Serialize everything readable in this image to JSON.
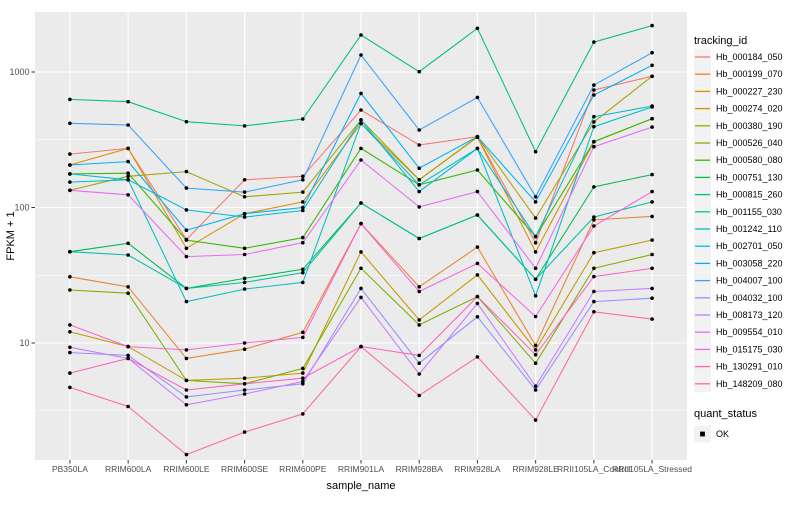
{
  "figure": {
    "background": "#FFFFFF",
    "panel_background": "#EBEBEB",
    "grid_color": "#FFFFFF",
    "tick_color": "#333333",
    "tick_label_color": "#4D4D4D",
    "text_color": "#000000",
    "legend_key_background": "#F2F2F2",
    "point_color": "#000000"
  },
  "chart_data": {
    "type": "line",
    "title": "",
    "xlabel": "sample_name",
    "ylabel": "FPKM + 1",
    "y_scale": "log10",
    "ylim": [
      1.35,
      2800
    ],
    "y_ticks": [
      10,
      100,
      1000
    ],
    "y_minor_gridlines": [
      3.162,
      31.62,
      316.2
    ],
    "grid": true,
    "legend_position": "right",
    "legend_title": "tracking_id",
    "point_legend": {
      "title": "quant_status",
      "items": [
        {
          "label": "OK",
          "marker": "black-square"
        }
      ]
    },
    "categories": [
      "PB350LA",
      "RRIM600LA",
      "RRIM600LE",
      "RRIM600SE",
      "RRIM600PE",
      "RRIM901LA",
      "RRIM928BA",
      "RRIM928LA",
      "RRIM928LE",
      "RRII105LA_Control",
      "RRII105LA_Stressed"
    ],
    "series": [
      {
        "name": "Hb_000184_050",
        "color": "#F8766D",
        "values": [
          248,
          273,
          58,
          160,
          170,
          524,
          289,
          333,
          55,
          736,
          929
        ]
      },
      {
        "name": "Hb_000199_070",
        "color": "#EA8331",
        "values": [
          30.8,
          26,
          7.7,
          9,
          12,
          76,
          26,
          51,
          9.6,
          81,
          86
        ]
      },
      {
        "name": "Hb_000227_230",
        "color": "#D89000",
        "values": [
          206,
          273,
          50,
          90,
          110,
          417,
          160,
          330,
          47,
          306,
          452
        ]
      },
      {
        "name": "Hb_000274_020",
        "color": "#C09B00",
        "values": [
          12.1,
          9.4,
          5.3,
          5.5,
          6,
          47,
          14.8,
          31.8,
          8.9,
          46.4,
          57.5
        ]
      },
      {
        "name": "Hb_000380_190",
        "color": "#A3A500",
        "values": [
          134,
          170,
          184,
          120,
          130,
          443,
          160,
          333,
          83.5,
          428,
          929
        ]
      },
      {
        "name": "Hb_000526_040",
        "color": "#7CAE00",
        "values": [
          24.6,
          23.3,
          5.3,
          5,
          6.5,
          35.6,
          13.6,
          22,
          7.1,
          35.6,
          45
        ]
      },
      {
        "name": "Hb_000580_080",
        "color": "#39B600",
        "values": [
          177,
          179,
          57.5,
          50,
          60,
          273,
          147,
          189,
          61,
          306,
          452
        ]
      },
      {
        "name": "Hb_000751_130",
        "color": "#00BB4E",
        "values": [
          47.2,
          54.4,
          25.3,
          30,
          35,
          108,
          59,
          88,
          29.5,
          142,
          175
        ]
      },
      {
        "name": "Hb_000815_260",
        "color": "#00BF7D",
        "values": [
          628,
          604,
          430,
          400,
          450,
          1875,
          1005,
          2100,
          258,
          1663,
          2200
        ]
      },
      {
        "name": "Hb_001155_030",
        "color": "#00C1A3",
        "values": [
          47.2,
          44.6,
          25.3,
          28,
          33,
          108,
          59,
          88,
          29.5,
          85,
          110
        ]
      },
      {
        "name": "Hb_001242_110",
        "color": "#00BFC4",
        "values": [
          154,
          160,
          20.2,
          25,
          28,
          417,
          147,
          273,
          22.3,
          395,
          552
        ]
      },
      {
        "name": "Hb_002701_050",
        "color": "#00BBDA",
        "values": [
          177,
          160,
          96,
          85,
          95,
          443,
          131,
          273,
          61,
          468,
          560
        ]
      },
      {
        "name": "Hb_003058_220",
        "color": "#00B0F6",
        "values": [
          206,
          218,
          68,
          90,
          100,
          695,
          195,
          333,
          110,
          676,
          1120
        ]
      },
      {
        "name": "Hb_004007_100",
        "color": "#35A2FF",
        "values": [
          418,
          406,
          139,
          130,
          160,
          1334,
          373,
          650,
          120,
          801,
          1387
        ]
      },
      {
        "name": "Hb_004032_100",
        "color": "#9590FF",
        "values": [
          8.5,
          8.1,
          4.0,
          4.5,
          5,
          25.3,
          7.1,
          15.6,
          4.5,
          20.2,
          21.4
        ]
      },
      {
        "name": "Hb_008173_120",
        "color": "#C77CFF",
        "values": [
          9.3,
          7.7,
          3.5,
          4.2,
          5.2,
          21.7,
          5.9,
          19.6,
          4.8,
          24,
          25.3
        ]
      },
      {
        "name": "Hb_009554_010",
        "color": "#E76BF3",
        "values": [
          134,
          124,
          43.4,
          45,
          55,
          224,
          101,
          131,
          35.6,
          281,
          392
        ]
      },
      {
        "name": "Hb_015175_030",
        "color": "#FA62DB",
        "values": [
          13.6,
          9.4,
          8.9,
          10,
          11,
          76,
          24,
          38.7,
          15.7,
          73,
          131
        ]
      },
      {
        "name": "Hb_130291_010",
        "color": "#FF62BC",
        "values": [
          6.0,
          7.7,
          4.5,
          5,
          5.5,
          9.4,
          8.1,
          22,
          8.2,
          30.9,
          35.6
        ]
      },
      {
        "name": "Hb_148209_080",
        "color": "#FF6A98",
        "values": [
          4.7,
          3.4,
          1.5,
          2.2,
          3,
          9.4,
          4.1,
          7.9,
          2.7,
          17,
          15
        ]
      }
    ]
  }
}
